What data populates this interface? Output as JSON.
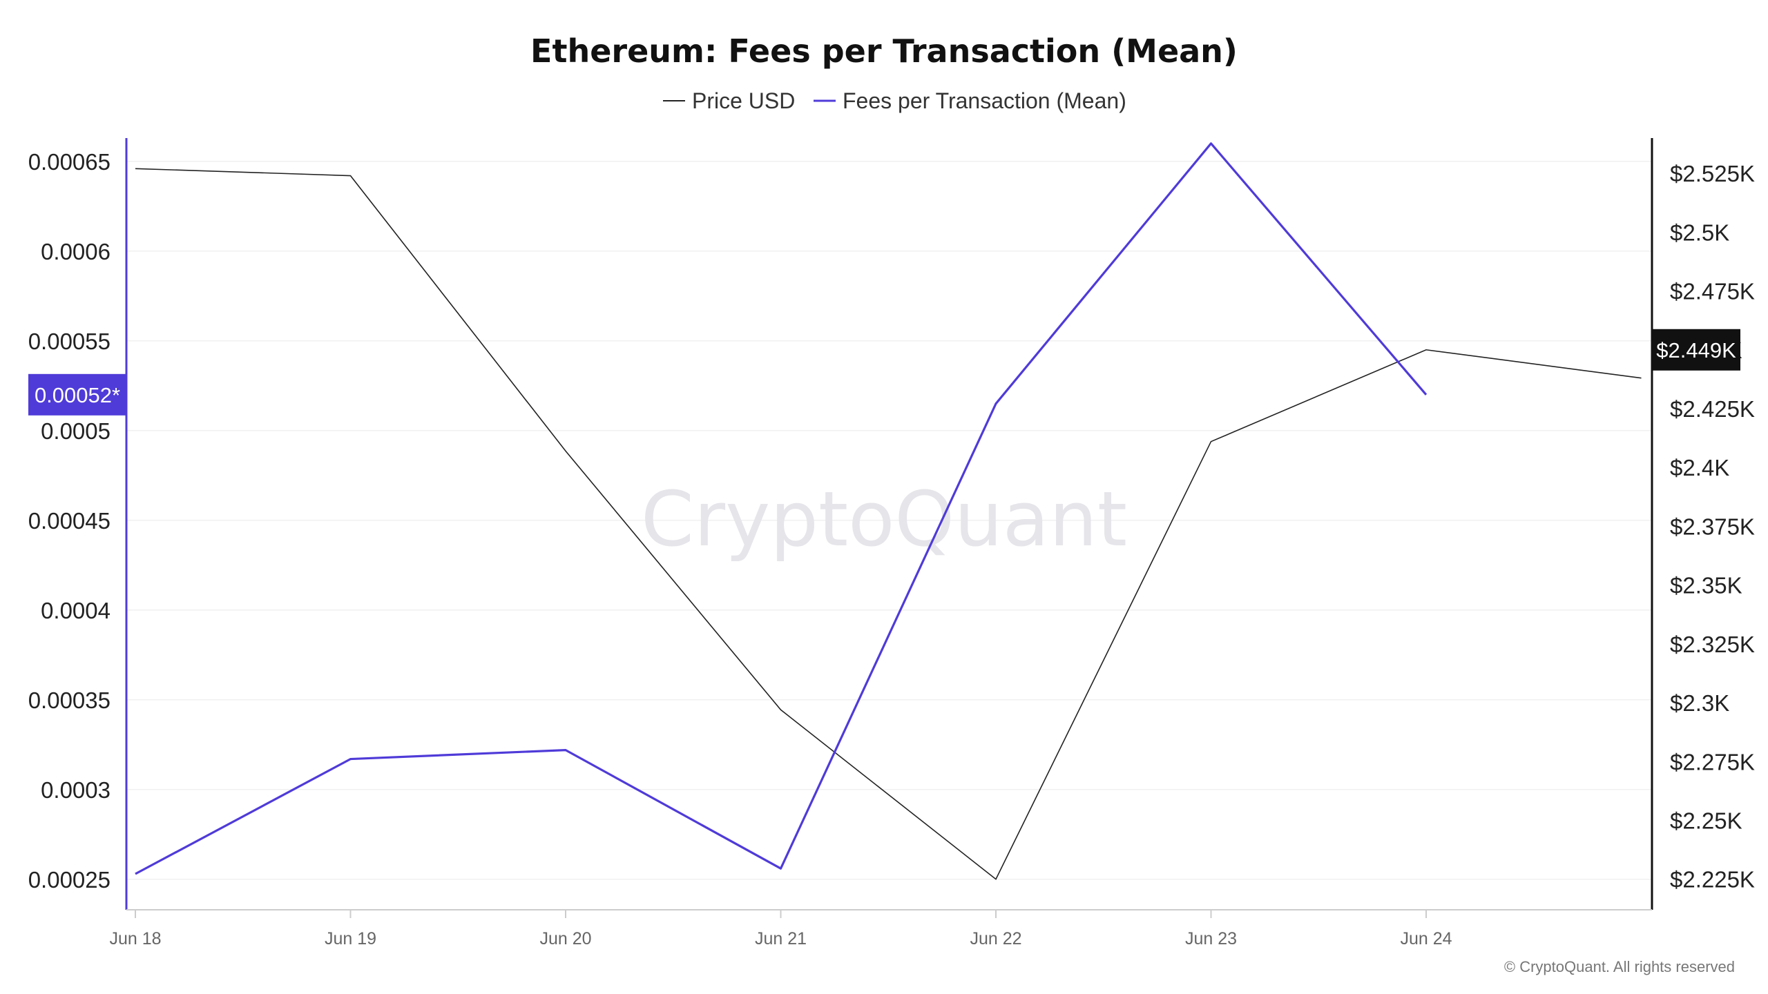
{
  "chart_data": {
    "type": "line",
    "title": "Ethereum: Fees per Transaction (Mean)",
    "categories": [
      "Jun 18",
      "Jun 19",
      "Jun 20",
      "Jun 21",
      "Jun 22",
      "Jun 23",
      "Jun 24"
    ],
    "legend": {
      "placement": "top-center"
    },
    "grid": true,
    "series": [
      {
        "name": "Price USD",
        "axis": "right",
        "color": "#222222",
        "x": [
          0,
          1,
          2,
          3,
          4,
          5,
          6,
          7
        ],
        "values": [
          2527,
          2524,
          2407,
          2297,
          2225,
          2411,
          2450,
          2438
        ]
      },
      {
        "name": "Fees per Transaction (Mean)",
        "axis": "left",
        "color": "#4f3bd8",
        "x": [
          0,
          1,
          2,
          3,
          4,
          5,
          6
        ],
        "values": [
          0.000253,
          0.000317,
          0.000322,
          0.000256,
          0.000515,
          0.00066,
          0.00052
        ]
      }
    ],
    "left_axis": {
      "ylim": [
        0.000233,
        0.000663
      ],
      "ticks": [
        "0.00025",
        "0.0003",
        "0.00035",
        "0.0004",
        "0.00045",
        "0.0005",
        "0.00055",
        "0.0006",
        "0.00065"
      ],
      "tick_values": [
        0.00025,
        0.0003,
        0.00035,
        0.0004,
        0.00045,
        0.0005,
        0.00055,
        0.0006,
        0.00065
      ],
      "current_label": "0.00052*",
      "current_value": 0.00052
    },
    "right_axis": {
      "ylim": [
        2212,
        2540
      ],
      "ticks": [
        "$2.225K",
        "$2.25K",
        "$2.275K",
        "$2.3K",
        "$2.325K",
        "$2.35K",
        "$2.375K",
        "$2.4K",
        "$2.425K",
        "$2.45K",
        "$2.475K",
        "$2.5K",
        "$2.525K"
      ],
      "tick_values": [
        2225,
        2250,
        2275,
        2300,
        2325,
        2350,
        2375,
        2400,
        2425,
        2450,
        2475,
        2500,
        2525
      ],
      "current_label": "$2.449K",
      "current_value": 2450
    },
    "watermark": "CryptoQuant",
    "copyright": "© CryptoQuant. All rights reserved"
  }
}
